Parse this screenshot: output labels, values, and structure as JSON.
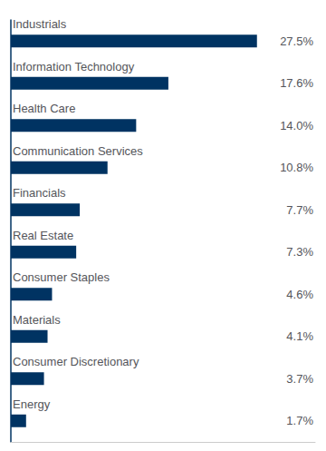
{
  "chart_data": {
    "type": "bar",
    "orientation": "horizontal",
    "categories": [
      "Industrials",
      "Information Technology",
      "Health Care",
      "Communication Services",
      "Financials",
      "Real Estate",
      "Consumer Staples",
      "Materials",
      "Consumer Discretionary",
      "Energy"
    ],
    "values": [
      27.5,
      17.6,
      14.0,
      10.8,
      7.7,
      7.3,
      4.6,
      4.1,
      3.7,
      1.7
    ],
    "value_labels": [
      "27.5%",
      "17.6%",
      "14.0%",
      "10.8%",
      "7.7%",
      "7.3%",
      "4.6%",
      "4.1%",
      "3.7%",
      "1.7%"
    ],
    "color": "#003362",
    "xlim": [
      0,
      34
    ],
    "tick_labels": "y",
    "grid": false
  }
}
